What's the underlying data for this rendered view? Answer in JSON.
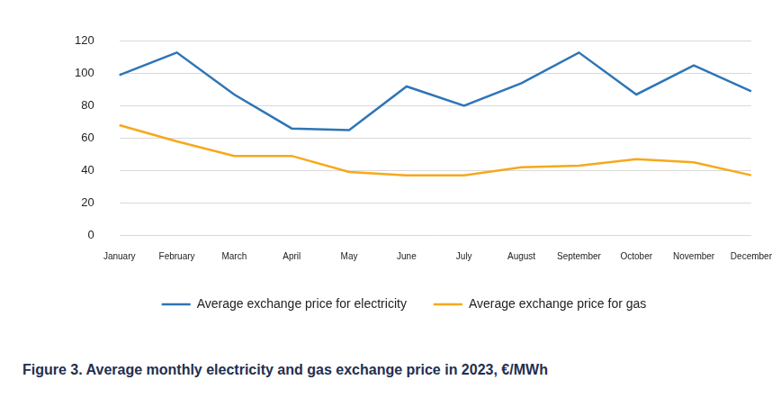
{
  "chart_data": {
    "type": "line",
    "title": "Figure 3. Average monthly electricity and gas exchange price in 2023, €/MWh",
    "categories": [
      "January",
      "February",
      "March",
      "April",
      "May",
      "June",
      "July",
      "August",
      "September",
      "October",
      "November",
      "December"
    ],
    "series": [
      {
        "name": "Average exchange price for electricity",
        "color": "#2e75b6",
        "values": [
          99,
          113,
          87,
          66,
          65,
          92,
          80,
          94,
          113,
          87,
          105,
          89
        ]
      },
      {
        "name": "Average exchange price for gas",
        "color": "#f7a81b",
        "values": [
          68,
          58,
          49,
          49,
          39,
          37,
          37,
          42,
          43,
          47,
          45,
          37
        ]
      }
    ],
    "ylim": [
      0,
      120
    ],
    "yticks": [
      0,
      20,
      40,
      60,
      80,
      100,
      120
    ],
    "grid": true,
    "legend": "bottom"
  }
}
